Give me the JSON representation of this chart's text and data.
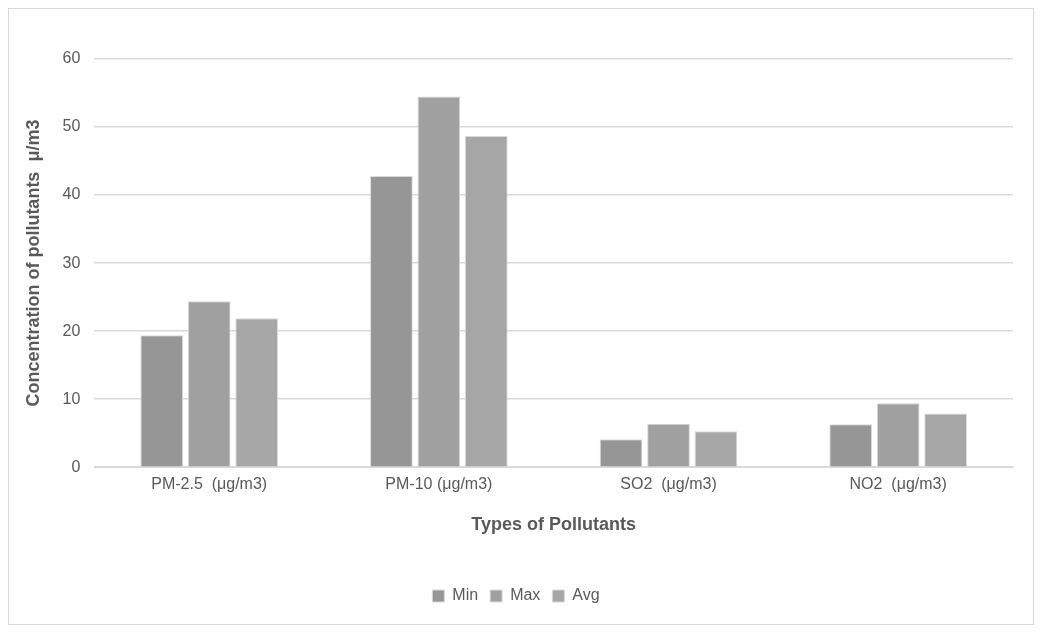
{
  "chart_data": {
    "type": "bar",
    "xlabel": "Types of Pollutants",
    "ylabel": "Concentration of pollutants  μ/m3",
    "categories": [
      "PM-2.5  (μg/m3)",
      "PM-10 (μg/m3)",
      "SO2  (μg/m3)",
      "NO2  (μg/m3)"
    ],
    "series": [
      {
        "name": "Min",
        "color": "#969696",
        "values": [
          19.4,
          42.8,
          4.1,
          6.3
        ]
      },
      {
        "name": "Max",
        "color": "#a0a0a0",
        "values": [
          24.4,
          54.5,
          6.4,
          9.4
        ]
      },
      {
        "name": "Avg",
        "color": "#a6a6a6",
        "values": [
          21.9,
          48.7,
          5.3,
          7.9
        ]
      }
    ],
    "ylim": [
      0,
      60
    ],
    "yticks": [
      0,
      10,
      20,
      30,
      40,
      50,
      60
    ],
    "grid": "y",
    "legend": "bottom"
  }
}
